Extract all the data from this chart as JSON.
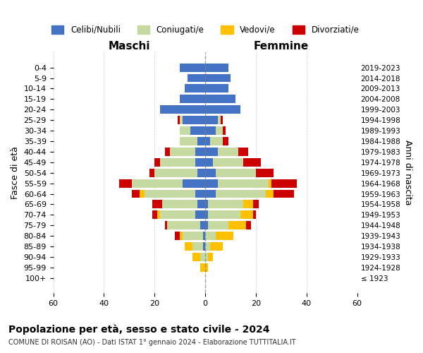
{
  "age_groups": [
    "100+",
    "95-99",
    "90-94",
    "85-89",
    "80-84",
    "75-79",
    "70-74",
    "65-69",
    "60-64",
    "55-59",
    "50-54",
    "45-49",
    "40-44",
    "35-39",
    "30-34",
    "25-29",
    "20-24",
    "15-19",
    "10-14",
    "5-9",
    "0-4"
  ],
  "birth_years": [
    "≤ 1923",
    "1924-1928",
    "1929-1933",
    "1934-1938",
    "1939-1943",
    "1944-1948",
    "1949-1953",
    "1954-1958",
    "1959-1963",
    "1964-1968",
    "1969-1973",
    "1974-1978",
    "1979-1983",
    "1984-1988",
    "1989-1993",
    "1994-1998",
    "1999-2003",
    "2004-2008",
    "2009-2013",
    "2014-2018",
    "2019-2023"
  ],
  "maschi": {
    "celibi": [
      0,
      0,
      0,
      1,
      1,
      2,
      4,
      3,
      4,
      9,
      3,
      4,
      4,
      3,
      6,
      9,
      18,
      10,
      8,
      7,
      10
    ],
    "coniugati": [
      0,
      0,
      2,
      4,
      8,
      13,
      14,
      14,
      20,
      20,
      17,
      14,
      10,
      7,
      4,
      1,
      0,
      0,
      0,
      0,
      0
    ],
    "vedovi": [
      0,
      2,
      3,
      3,
      1,
      0,
      1,
      0,
      2,
      0,
      0,
      0,
      0,
      0,
      0,
      0,
      0,
      0,
      0,
      0,
      0
    ],
    "divorziati": [
      0,
      0,
      0,
      0,
      2,
      1,
      2,
      4,
      3,
      5,
      2,
      2,
      2,
      0,
      0,
      1,
      0,
      0,
      0,
      0,
      0
    ]
  },
  "femmine": {
    "nubili": [
      0,
      0,
      0,
      0,
      0,
      1,
      1,
      1,
      4,
      5,
      4,
      3,
      5,
      2,
      4,
      5,
      14,
      12,
      9,
      10,
      9
    ],
    "coniugate": [
      0,
      0,
      1,
      2,
      4,
      8,
      13,
      14,
      20,
      20,
      16,
      12,
      8,
      5,
      3,
      1,
      0,
      0,
      0,
      0,
      0
    ],
    "vedove": [
      0,
      1,
      2,
      5,
      7,
      7,
      5,
      4,
      3,
      1,
      0,
      0,
      0,
      0,
      0,
      0,
      0,
      0,
      0,
      0,
      0
    ],
    "divorziate": [
      0,
      0,
      0,
      0,
      0,
      2,
      1,
      2,
      8,
      10,
      7,
      7,
      4,
      2,
      1,
      1,
      0,
      0,
      0,
      0,
      0
    ]
  },
  "colors": {
    "celibi": "#4472c4",
    "coniugati": "#c5d9a0",
    "vedovi": "#ffc000",
    "divorziati": "#cc0000"
  },
  "xlim": 60,
  "title": "Popolazione per età, sesso e stato civile - 2024",
  "subtitle": "COMUNE DI ROISAN (AO) - Dati ISTAT 1° gennaio 2024 - Elaborazione TUTTITALIA.IT",
  "xlabel_left": "Maschi",
  "xlabel_right": "Femmine",
  "ylabel_left": "Fasce di età",
  "ylabel_right": "Anni di nascita",
  "legend_labels": [
    "Celibi/Nubili",
    "Coniugati/e",
    "Vedovi/e",
    "Divorziati/e"
  ],
  "bg_color": "#ffffff",
  "grid_color": "#cccccc"
}
